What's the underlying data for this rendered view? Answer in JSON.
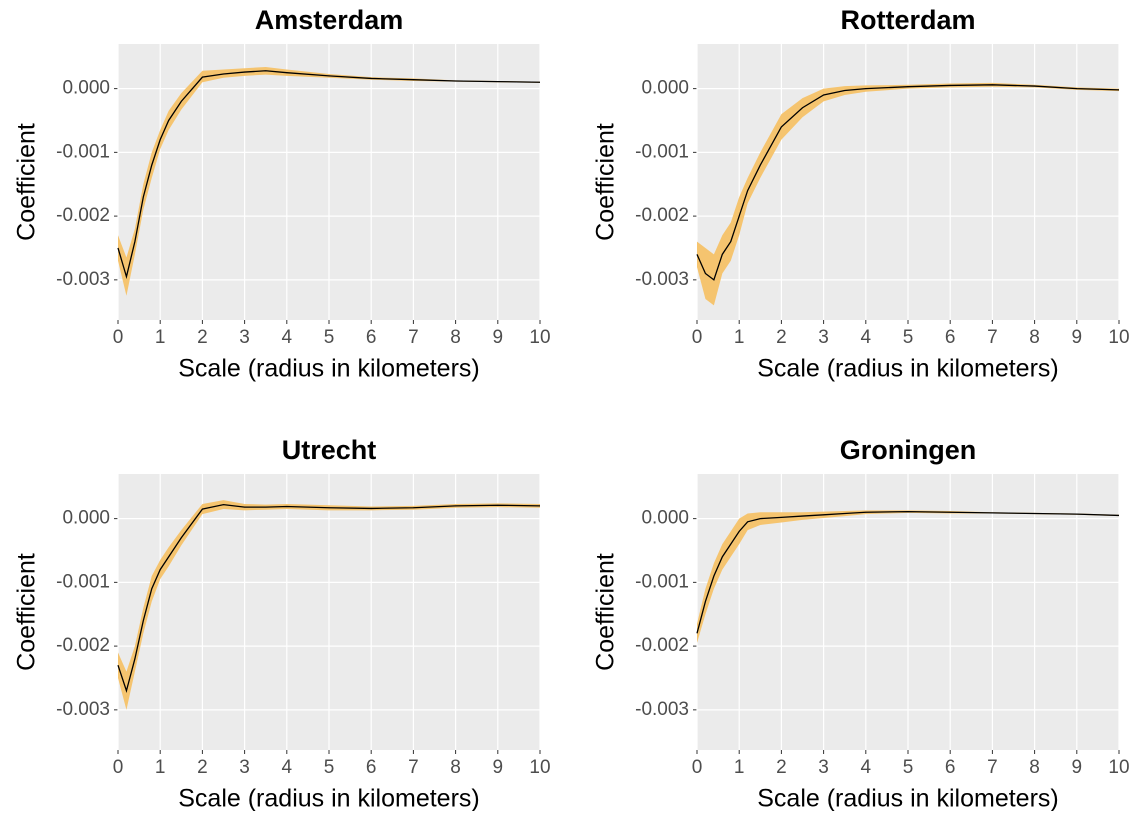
{
  "chart_data": [
    {
      "type": "line",
      "title": "Amsterdam",
      "xlabel": "Scale (radius in kilometers)",
      "ylabel": "Coefficient",
      "x": [
        0,
        0.2,
        0.4,
        0.6,
        0.8,
        1,
        1.2,
        1.5,
        2,
        2.5,
        3,
        3.5,
        4,
        5,
        6,
        7,
        8,
        9,
        10
      ],
      "values": [
        -0.0025,
        -0.00295,
        -0.0024,
        -0.0017,
        -0.0012,
        -0.0008,
        -0.0005,
        -0.0002,
        0.00018,
        0.00023,
        0.00026,
        0.00028,
        0.00025,
        0.0002,
        0.00016,
        0.00014,
        0.00012,
        0.00011,
        0.0001
      ],
      "band_lower": [
        -0.0027,
        -0.00325,
        -0.0026,
        -0.0019,
        -0.0014,
        -0.00095,
        -0.00065,
        -0.00033,
        0.0001,
        0.00017,
        0.0002,
        0.00022,
        0.0002,
        0.00017,
        0.00014,
        0.00012,
        0.00011,
        0.0001,
        9e-05
      ],
      "band_upper": [
        -0.0023,
        -0.00265,
        -0.0022,
        -0.0015,
        -0.001,
        -0.00065,
        -0.00035,
        -7e-05,
        0.00028,
        0.0003,
        0.00032,
        0.00034,
        0.0003,
        0.00023,
        0.00018,
        0.00016,
        0.00013,
        0.00012,
        0.00011
      ],
      "color": "#000000",
      "band_color": "#f5c46f",
      "xlim": [
        0,
        10
      ],
      "xticks": [
        0,
        1,
        2,
        3,
        4,
        5,
        6,
        7,
        8,
        9,
        10
      ],
      "ylim": [
        -0.00363,
        0.0007
      ],
      "yticks": [
        {
          "value": 0,
          "label": "0.000"
        },
        -0.001,
        -0.002,
        -0.003
      ],
      "grid": true
    },
    {
      "type": "line",
      "title": "Rotterdam",
      "xlabel": "Scale (radius in kilometers)",
      "ylabel": "Coefficient",
      "x": [
        0,
        0.2,
        0.4,
        0.6,
        0.8,
        1,
        1.2,
        1.5,
        2,
        2.5,
        3,
        3.5,
        4,
        5,
        6,
        7,
        8,
        9,
        10
      ],
      "values": [
        -0.0026,
        -0.0029,
        -0.003,
        -0.0026,
        -0.0024,
        -0.002,
        -0.0016,
        -0.0012,
        -0.0006,
        -0.0003,
        -0.0001,
        -3e-05,
        0,
        3e-05,
        5e-05,
        6e-05,
        4e-05,
        0,
        -2e-05
      ],
      "band_lower": [
        -0.0028,
        -0.0033,
        -0.0034,
        -0.0029,
        -0.0027,
        -0.0023,
        -0.0018,
        -0.0014,
        -0.0008,
        -0.00045,
        -0.0002,
        -0.0001,
        -5e-05,
        0,
        2e-05,
        3e-05,
        2e-05,
        -2e-05,
        -4e-05
      ],
      "band_upper": [
        -0.0024,
        -0.0025,
        -0.0026,
        -0.0023,
        -0.0021,
        -0.0017,
        -0.0014,
        -0.001,
        -0.0004,
        -0.00015,
        0,
        4e-05,
        5e-05,
        6e-05,
        8e-05,
        9e-05,
        6e-05,
        2e-05,
        0
      ],
      "color": "#000000",
      "band_color": "#f5c46f",
      "xlim": [
        0,
        10
      ],
      "xticks": [
        0,
        1,
        2,
        3,
        4,
        5,
        6,
        7,
        8,
        9,
        10
      ],
      "ylim": [
        -0.00363,
        0.0007
      ],
      "yticks": [
        {
          "value": 0,
          "label": "0.000"
        },
        -0.001,
        -0.002,
        -0.003
      ],
      "grid": true
    },
    {
      "type": "line",
      "title": "Utrecht",
      "xlabel": "Scale (radius in kilometers)",
      "ylabel": "Coefficient",
      "x": [
        0,
        0.2,
        0.4,
        0.6,
        0.8,
        1,
        1.2,
        1.5,
        2,
        2.5,
        3,
        3.5,
        4,
        5,
        6,
        7,
        8,
        9,
        10
      ],
      "values": [
        -0.0023,
        -0.0027,
        -0.0022,
        -0.0016,
        -0.0011,
        -0.0008,
        -0.0006,
        -0.0003,
        0.00015,
        0.00022,
        0.00018,
        0.00018,
        0.00019,
        0.00017,
        0.00016,
        0.00017,
        0.0002,
        0.00021,
        0.0002
      ],
      "band_lower": [
        -0.0025,
        -0.003,
        -0.0024,
        -0.0018,
        -0.0013,
        -0.00095,
        -0.00075,
        -0.00042,
        7e-05,
        0.00015,
        0.00013,
        0.00014,
        0.00015,
        0.00013,
        0.00013,
        0.00014,
        0.00017,
        0.00018,
        0.00017
      ],
      "band_upper": [
        -0.0021,
        -0.0024,
        -0.002,
        -0.0014,
        -0.0009,
        -0.00065,
        -0.00045,
        -0.00018,
        0.00023,
        0.00029,
        0.00023,
        0.00022,
        0.00023,
        0.00021,
        0.00019,
        0.0002,
        0.00023,
        0.00024,
        0.00023
      ],
      "color": "#000000",
      "band_color": "#f5c46f",
      "xlim": [
        0,
        10
      ],
      "xticks": [
        0,
        1,
        2,
        3,
        4,
        5,
        6,
        7,
        8,
        9,
        10
      ],
      "ylim": [
        -0.00363,
        0.0007
      ],
      "yticks": [
        {
          "value": 0,
          "label": "0.000"
        },
        -0.001,
        -0.002,
        -0.003
      ],
      "grid": true
    },
    {
      "type": "line",
      "title": "Groningen",
      "xlabel": "Scale (radius in kilometers)",
      "ylabel": "Coefficient",
      "x": [
        0,
        0.2,
        0.4,
        0.6,
        0.8,
        1,
        1.2,
        1.5,
        2,
        2.5,
        3,
        3.5,
        4,
        5,
        6,
        7,
        8,
        9,
        10
      ],
      "values": [
        -0.0018,
        -0.0013,
        -0.0009,
        -0.0006,
        -0.0004,
        -0.0002,
        -5e-05,
        0,
        2e-05,
        4e-05,
        6e-05,
        8e-05,
        0.0001,
        0.00011,
        0.0001,
        9e-05,
        8e-05,
        7e-05,
        5e-05
      ],
      "band_lower": [
        -0.00195,
        -0.0015,
        -0.0011,
        -0.0008,
        -0.0006,
        -0.0004,
        -0.00018,
        -0.0001,
        -6e-05,
        -2e-05,
        1e-05,
        4e-05,
        7e-05,
        9e-05,
        8e-05,
        8e-05,
        7e-05,
        6e-05,
        4e-05
      ],
      "band_upper": [
        -0.00165,
        -0.0011,
        -0.0007,
        -0.0004,
        -0.0002,
        0,
        8e-05,
        0.0001,
        0.0001,
        0.0001,
        0.00011,
        0.00012,
        0.00013,
        0.00013,
        0.00012,
        0.0001,
        9e-05,
        8e-05,
        6e-05
      ],
      "color": "#000000",
      "band_color": "#f5c46f",
      "xlim": [
        0,
        10
      ],
      "xticks": [
        0,
        1,
        2,
        3,
        4,
        5,
        6,
        7,
        8,
        9,
        10
      ],
      "ylim": [
        -0.00363,
        0.0007
      ],
      "yticks": [
        {
          "value": 0,
          "label": "0.000"
        },
        -0.001,
        -0.002,
        -0.003
      ],
      "grid": true
    }
  ]
}
